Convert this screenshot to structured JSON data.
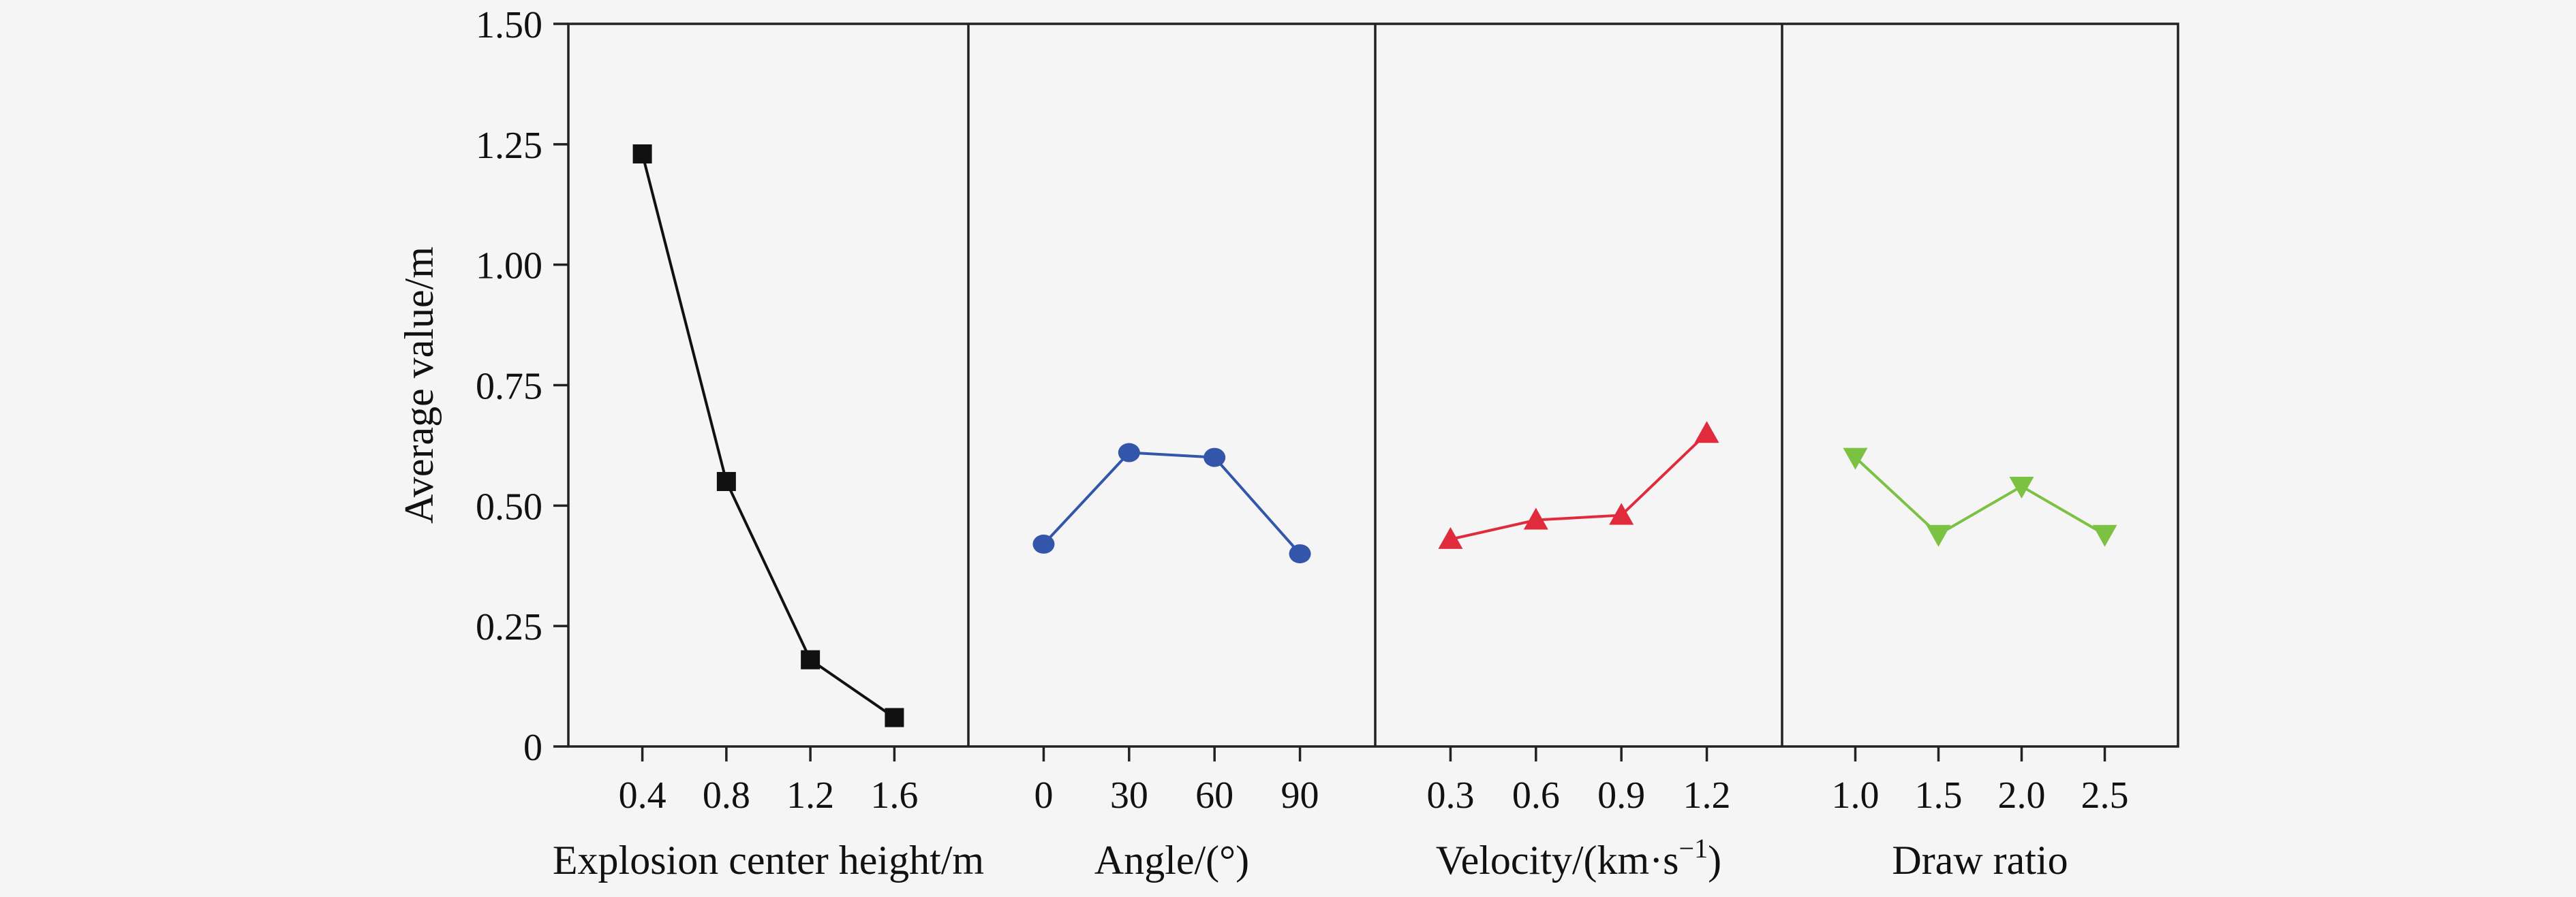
{
  "chart_data": {
    "type": "line",
    "ylabel": "Average value/m",
    "ylim": [
      0,
      1.5
    ],
    "yticks": [
      "0",
      "0.25",
      "0.50",
      "0.75",
      "1.00",
      "1.25",
      "1.50"
    ],
    "ytick_values": [
      0,
      0.25,
      0.5,
      0.75,
      1.0,
      1.25,
      1.5
    ],
    "grid": false,
    "panels": [
      {
        "xlabel": "Explosion center height/m",
        "categories": [
          "0.4",
          "0.8",
          "1.2",
          "1.6"
        ],
        "values": [
          1.23,
          0.55,
          0.18,
          0.06
        ],
        "marker": "square",
        "color": "#111111"
      },
      {
        "xlabel": "Angle/(°)",
        "categories": [
          "0",
          "30",
          "60",
          "90"
        ],
        "values": [
          0.42,
          0.61,
          0.6,
          0.4
        ],
        "marker": "circle",
        "color": "#3355aa"
      },
      {
        "xlabel": "Velocity/(km·s",
        "xlabel_sup": "−1",
        "xlabel_suffix": ")",
        "categories": [
          "0.3",
          "0.6",
          "0.9",
          "1.2"
        ],
        "values": [
          0.43,
          0.47,
          0.48,
          0.65
        ],
        "marker": "triangle-up",
        "color": "#e02b3c"
      },
      {
        "xlabel": "Draw ratio",
        "categories": [
          "1.0",
          "1.5",
          "2.0",
          "2.5"
        ],
        "values": [
          0.6,
          0.44,
          0.54,
          0.44
        ],
        "marker": "triangle-down",
        "color": "#7cc242"
      }
    ]
  }
}
